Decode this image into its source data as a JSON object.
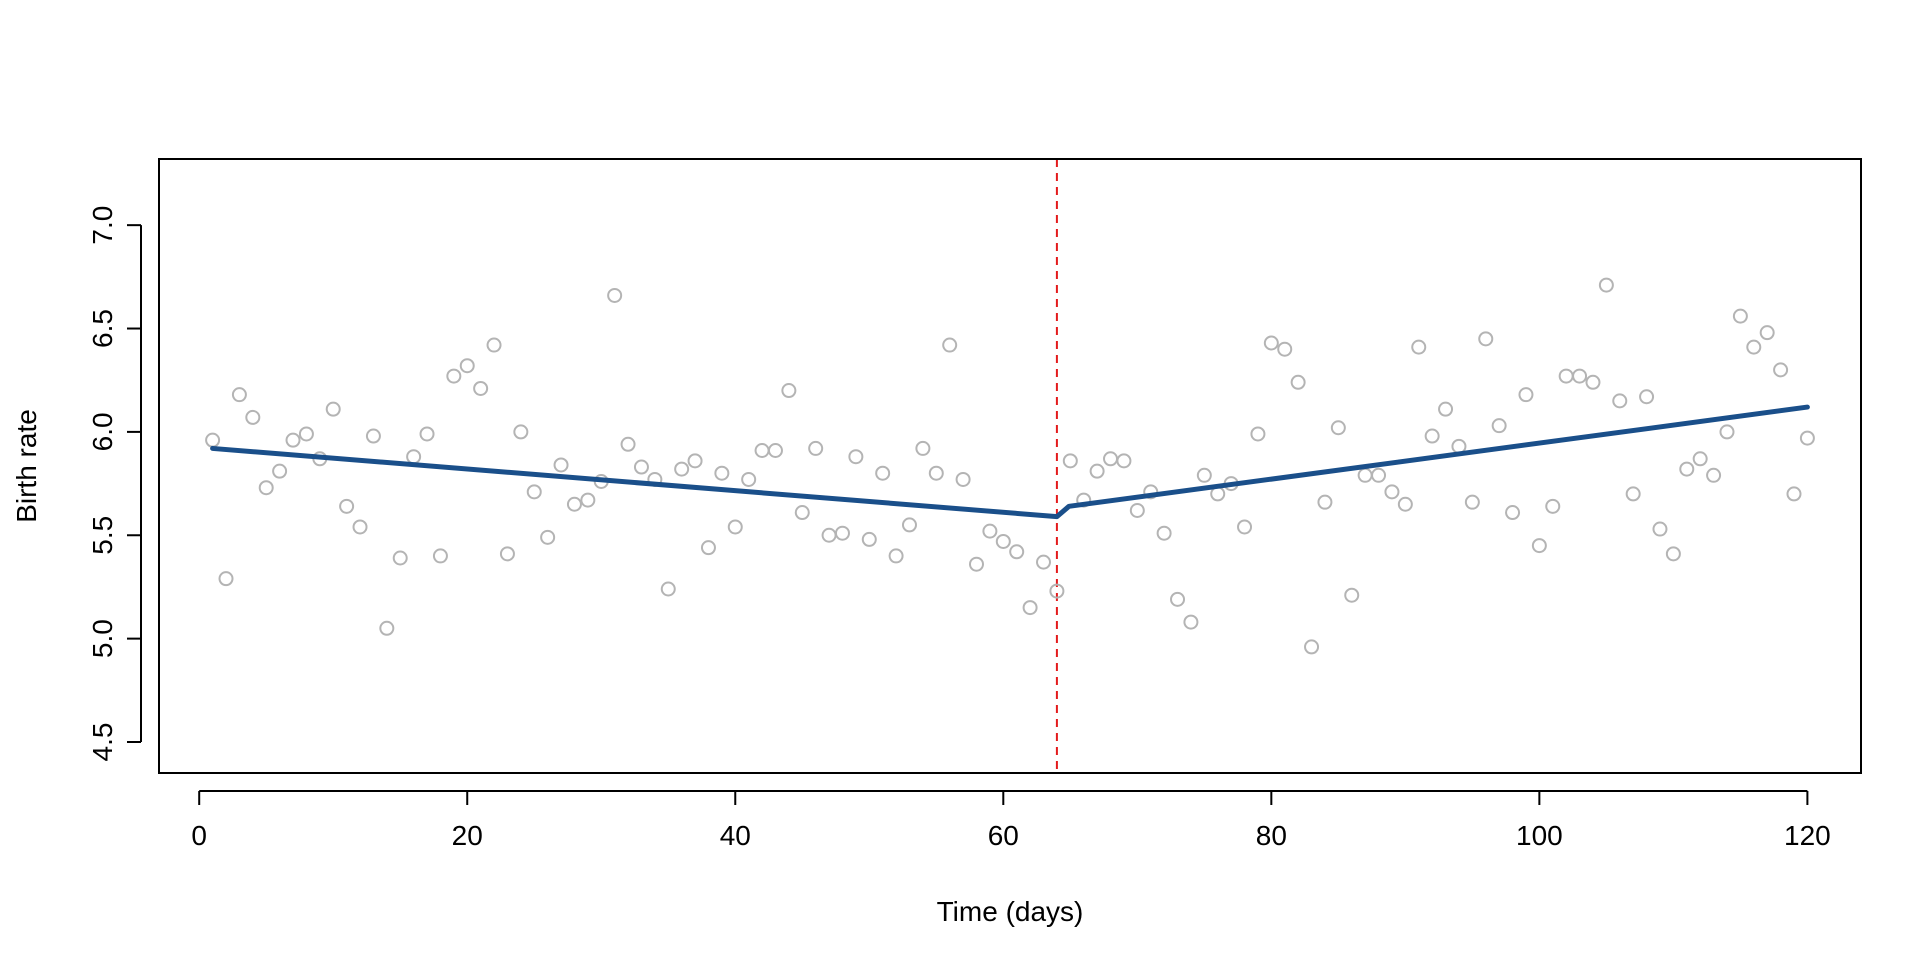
{
  "chart_data": {
    "type": "scatter",
    "title": "",
    "xlabel": "Time (days)",
    "ylabel": "Birth rate",
    "xlim": [
      -3,
      124
    ],
    "ylim": [
      4.35,
      7.32
    ],
    "x_ticks": [
      0,
      20,
      40,
      60,
      80,
      100,
      120
    ],
    "x_tick_labels": [
      "0",
      "20",
      "40",
      "60",
      "80",
      "100",
      "120"
    ],
    "y_ticks": [
      4.5,
      5.0,
      5.5,
      6.0,
      6.5,
      7.0
    ],
    "y_tick_labels": [
      "4.5",
      "5.0",
      "5.5",
      "6.0",
      "6.5",
      "7.0"
    ],
    "grid": false,
    "colors": {
      "points": "#b4b4b4",
      "fit_line": "#1a4f8a",
      "intervention_line": "#e31a1c",
      "axes": "#000000"
    },
    "intervention": {
      "x": 64
    },
    "series": [
      {
        "type": "scatter",
        "x": [
          1,
          2,
          3,
          4,
          5,
          6,
          7,
          8,
          9,
          10,
          11,
          12,
          13,
          14,
          15,
          16,
          17,
          18,
          19,
          20,
          21,
          22,
          23,
          24,
          25,
          26,
          27,
          28,
          29,
          30,
          31,
          32,
          33,
          34,
          35,
          36,
          37,
          38,
          39,
          40,
          41,
          42,
          43,
          44,
          45,
          46,
          47,
          48,
          49,
          50,
          51,
          52,
          53,
          54,
          55,
          56,
          57,
          58,
          59,
          60,
          61,
          62,
          63,
          64,
          65,
          66,
          67,
          68,
          69,
          70,
          71,
          72,
          73,
          74,
          75,
          76,
          77,
          78,
          79,
          80,
          81,
          82,
          83,
          84,
          85,
          86,
          87,
          88,
          89,
          90,
          91,
          92,
          93,
          94,
          95,
          96,
          97,
          98,
          99,
          100,
          101,
          102,
          103,
          104,
          105,
          106,
          107,
          108,
          109,
          110,
          111,
          112,
          113,
          114,
          115,
          116,
          117,
          118,
          119,
          120
        ],
        "y": [
          5.96,
          5.29,
          6.18,
          6.07,
          5.73,
          5.81,
          5.96,
          5.99,
          5.87,
          6.11,
          5.64,
          5.54,
          5.98,
          5.05,
          5.39,
          5.88,
          5.99,
          5.4,
          6.27,
          6.32,
          6.21,
          6.42,
          5.41,
          6.0,
          5.71,
          5.49,
          5.84,
          5.65,
          5.67,
          5.76,
          6.66,
          5.94,
          5.83,
          5.77,
          5.24,
          5.82,
          5.86,
          5.44,
          5.8,
          5.54,
          5.77,
          5.91,
          5.91,
          6.2,
          5.61,
          5.92,
          5.5,
          5.51,
          5.88,
          5.48,
          5.8,
          5.4,
          5.55,
          5.92,
          5.8,
          6.42,
          5.77,
          5.36,
          5.52,
          5.47,
          5.42,
          5.15,
          5.37,
          5.23,
          5.86,
          5.67,
          5.81,
          5.87,
          5.86,
          5.62,
          5.71,
          5.51,
          5.19,
          5.08,
          5.79,
          5.7,
          5.75,
          5.54,
          5.99,
          6.43,
          6.4,
          6.24,
          4.96,
          5.66,
          6.02,
          5.21,
          5.79,
          5.79,
          5.71,
          5.65,
          6.41,
          5.98,
          6.11,
          5.93,
          5.66,
          6.45,
          6.03,
          5.61,
          6.18,
          5.45,
          5.64,
          6.27,
          6.27,
          6.24,
          6.71,
          6.15,
          5.7,
          6.17,
          5.53,
          5.41,
          5.82,
          5.87,
          5.79,
          6.0,
          6.56,
          6.41,
          6.48,
          6.3,
          5.7,
          5.97
        ]
      },
      {
        "type": "line",
        "x": [
          1,
          64,
          64.9,
          120
        ],
        "y": [
          5.92,
          5.59,
          5.64,
          6.12
        ]
      }
    ]
  }
}
